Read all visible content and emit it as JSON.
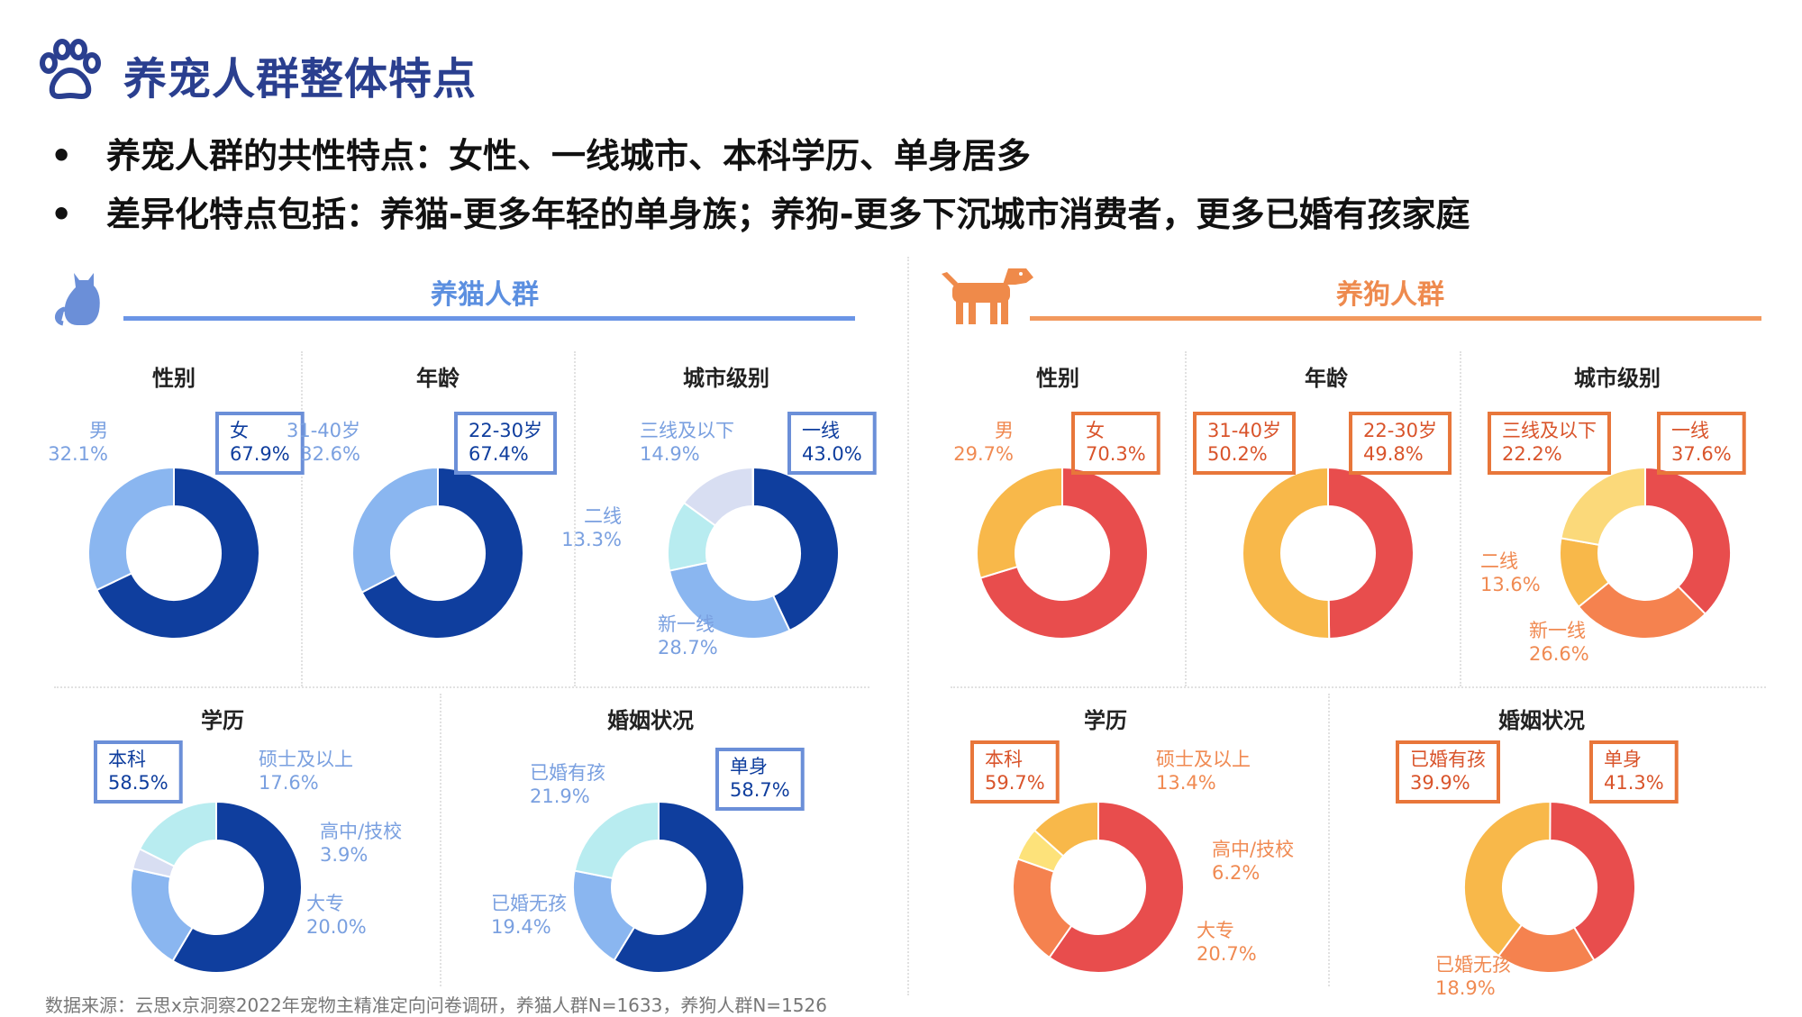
{
  "page": {
    "title": "养宠人群整体特点",
    "bullets": [
      "养宠人群的共性特点：女性、一线城市、本科学历、单身居多",
      "差异化特点包括：养猫-更多年轻的单身族；养狗-更多下沉城市消费者，更多已婚有孩家庭"
    ],
    "cat_group": "养猫人群",
    "dog_group": "养狗人群",
    "source": "数据来源：云思x京洞察2022年宠物主精准定向问卷调研，养猫人群N=1633，养狗人群N=1526"
  },
  "colors": {
    "title": "#2a3f8f",
    "cat_accent": "#6b95e6",
    "dog_accent": "#f2995e",
    "highlight_cat": "#6b8fd8",
    "highlight_dog": "#e8763a"
  },
  "chart_data": [
    {
      "type": "pie",
      "group": "cat",
      "title": "性别",
      "slices": [
        {
          "label": "女",
          "value": "67.9%",
          "pct": 67.9,
          "color": "#0f3e9e",
          "highlight": true
        },
        {
          "label": "男",
          "value": "32.1%",
          "pct": 32.1,
          "color": "#8ab6f0",
          "highlight": false
        }
      ]
    },
    {
      "type": "pie",
      "group": "cat",
      "title": "年龄",
      "slices": [
        {
          "label": "22-30岁",
          "value": "67.4%",
          "pct": 67.4,
          "color": "#0f3e9e",
          "highlight": true
        },
        {
          "label": "31-40岁",
          "value": "32.6%",
          "pct": 32.6,
          "color": "#8ab6f0",
          "highlight": false
        }
      ]
    },
    {
      "type": "pie",
      "group": "cat",
      "title": "城市级别",
      "slices": [
        {
          "label": "一线",
          "value": "43.0%",
          "pct": 43.0,
          "color": "#0f3e9e",
          "highlight": true
        },
        {
          "label": "新一线",
          "value": "28.7%",
          "pct": 28.7,
          "color": "#8ab6f0",
          "highlight": false
        },
        {
          "label": "二线",
          "value": "13.3%",
          "pct": 13.3,
          "color": "#b8ecf0",
          "highlight": false
        },
        {
          "label": "三线及以下",
          "value": "14.9%",
          "pct": 14.9,
          "color": "#d8def2",
          "highlight": false
        }
      ]
    },
    {
      "type": "pie",
      "group": "cat",
      "title": "学历",
      "slices": [
        {
          "label": "本科",
          "value": "58.5%",
          "pct": 58.5,
          "color": "#0f3e9e",
          "highlight": true
        },
        {
          "label": "大专",
          "value": "20.0%",
          "pct": 20.0,
          "color": "#8ab6f0",
          "highlight": false
        },
        {
          "label": "高中/技校",
          "value": "3.9%",
          "pct": 3.9,
          "color": "#d8def2",
          "highlight": false
        },
        {
          "label": "硕士及以上",
          "value": "17.6%",
          "pct": 17.6,
          "color": "#b8ecf0",
          "highlight": false
        }
      ]
    },
    {
      "type": "pie",
      "group": "cat",
      "title": "婚姻状况",
      "slices": [
        {
          "label": "单身",
          "value": "58.7%",
          "pct": 58.7,
          "color": "#0f3e9e",
          "highlight": true
        },
        {
          "label": "已婚无孩",
          "value": "19.4%",
          "pct": 19.4,
          "color": "#8ab6f0",
          "highlight": false
        },
        {
          "label": "已婚有孩",
          "value": "21.9%",
          "pct": 21.9,
          "color": "#b8ecf0",
          "highlight": false
        }
      ]
    },
    {
      "type": "pie",
      "group": "dog",
      "title": "性别",
      "slices": [
        {
          "label": "女",
          "value": "70.3%",
          "pct": 70.3,
          "color": "#e84d4d",
          "highlight": true
        },
        {
          "label": "男",
          "value": "29.7%",
          "pct": 29.7,
          "color": "#f8b84a",
          "highlight": false
        }
      ]
    },
    {
      "type": "pie",
      "group": "dog",
      "title": "年龄",
      "slices": [
        {
          "label": "22-30岁",
          "value": "49.8%",
          "pct": 49.8,
          "color": "#e84d4d",
          "highlight": true
        },
        {
          "label": "31-40岁",
          "value": "50.2%",
          "pct": 50.2,
          "color": "#f8b84a",
          "highlight": true
        }
      ]
    },
    {
      "type": "pie",
      "group": "dog",
      "title": "城市级别",
      "slices": [
        {
          "label": "一线",
          "value": "37.6%",
          "pct": 37.6,
          "color": "#e84d4d",
          "highlight": true
        },
        {
          "label": "新一线",
          "value": "26.6%",
          "pct": 26.6,
          "color": "#f5824f",
          "highlight": false
        },
        {
          "label": "二线",
          "value": "13.6%",
          "pct": 13.6,
          "color": "#f8b84a",
          "highlight": false
        },
        {
          "label": "三线及以下",
          "value": "22.2%",
          "pct": 22.2,
          "color": "#fbd97a",
          "highlight": true
        }
      ]
    },
    {
      "type": "pie",
      "group": "dog",
      "title": "学历",
      "slices": [
        {
          "label": "本科",
          "value": "59.7%",
          "pct": 59.7,
          "color": "#e84d4d",
          "highlight": true
        },
        {
          "label": "大专",
          "value": "20.7%",
          "pct": 20.7,
          "color": "#f5824f",
          "highlight": false
        },
        {
          "label": "高中/技校",
          "value": "6.2%",
          "pct": 6.2,
          "color": "#fde27a",
          "highlight": false
        },
        {
          "label": "硕士及以上",
          "value": "13.4%",
          "pct": 13.4,
          "color": "#f8b84a",
          "highlight": false
        }
      ]
    },
    {
      "type": "pie",
      "group": "dog",
      "title": "婚姻状况",
      "slices": [
        {
          "label": "单身",
          "value": "41.3%",
          "pct": 41.3,
          "color": "#e84d4d",
          "highlight": true
        },
        {
          "label": "已婚无孩",
          "value": "18.9%",
          "pct": 18.9,
          "color": "#f5824f",
          "highlight": false
        },
        {
          "label": "已婚有孩",
          "value": "39.9%",
          "pct": 39.9,
          "color": "#f8b84a",
          "highlight": true
        }
      ]
    }
  ]
}
